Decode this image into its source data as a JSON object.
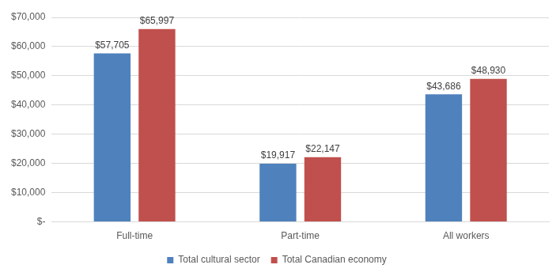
{
  "chart_data": {
    "type": "bar",
    "categories": [
      "Full-time",
      "Part-time",
      "All workers"
    ],
    "series": [
      {
        "name": "Total cultural sector",
        "color": "#4f81bd",
        "values": [
          57705,
          19917,
          43686
        ],
        "value_labels": [
          "$57,705",
          "$19,917",
          "$43,686"
        ]
      },
      {
        "name": "Total Canadian economy",
        "color": "#c0504d",
        "values": [
          65997,
          22147,
          48930
        ],
        "value_labels": [
          "$65,997",
          "$22,147",
          "$48,930"
        ]
      }
    ],
    "ylim": [
      0,
      70000
    ],
    "yticks": [
      {
        "value": 0,
        "label": "$-"
      },
      {
        "value": 10000,
        "label": "$10,000"
      },
      {
        "value": 20000,
        "label": "$20,000"
      },
      {
        "value": 30000,
        "label": "$30,000"
      },
      {
        "value": 40000,
        "label": "$40,000"
      },
      {
        "value": 50000,
        "label": "$50,000"
      },
      {
        "value": 60000,
        "label": "$60,000"
      },
      {
        "value": 70000,
        "label": "$70,000"
      }
    ],
    "grid": true,
    "legend": "bottom",
    "data_labels": true
  }
}
